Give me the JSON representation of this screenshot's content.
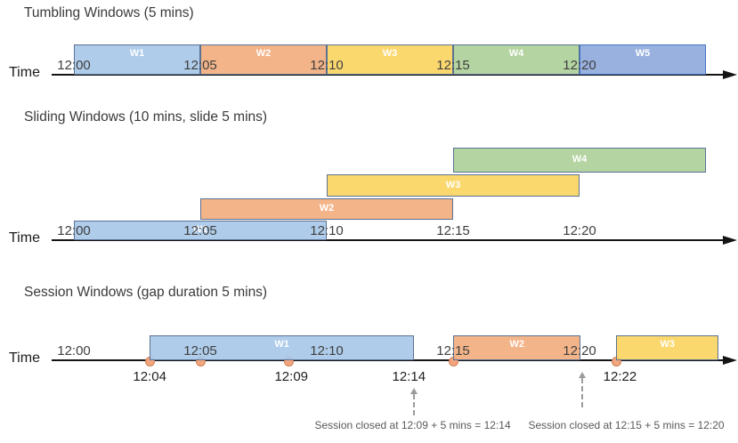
{
  "colors": {
    "window_blue_fill": "#A6C6E8",
    "window_orange_fill": "#F2AC7C",
    "window_yellow_fill": "#FBD45E",
    "window_green_fill": "#ACCF97",
    "window_periwinkle_fill": "#8EA8DC",
    "window_border": "#5B7293",
    "window_periwinkle_border": "#4472C4",
    "event_dot_fill": "#F2A57F",
    "event_dot_border": "#D08050",
    "axis_color": "#141414",
    "callout_gray": "#9B9B9B"
  },
  "diagrams": [
    {
      "id": "tumbling",
      "title": "Tumbling Windows (5 mins)",
      "axis_label": "Time",
      "ticks": [
        {
          "label": "12:00",
          "min": 0
        },
        {
          "label": "12:05",
          "min": 5
        },
        {
          "label": "12:10",
          "min": 10
        },
        {
          "label": "12:15",
          "min": 15
        },
        {
          "label": "12:20",
          "min": 20
        }
      ],
      "windows": [
        {
          "label": "W1",
          "start_min": 0,
          "end_min": 5,
          "row": 0,
          "color": "blue"
        },
        {
          "label": "W2",
          "start_min": 5,
          "end_min": 10,
          "row": 0,
          "color": "orange"
        },
        {
          "label": "W3",
          "start_min": 10,
          "end_min": 15,
          "row": 0,
          "color": "yellow"
        },
        {
          "label": "W4",
          "start_min": 15,
          "end_min": 20,
          "row": 0,
          "color": "green"
        },
        {
          "label": "W5",
          "start_min": 20,
          "end_min": 25,
          "row": 0,
          "color": "periwinkle"
        }
      ]
    },
    {
      "id": "sliding",
      "title": "Sliding Windows (10 mins, slide 5 mins)",
      "axis_label": "Time",
      "ticks": [
        {
          "label": "12:00",
          "min": 0
        },
        {
          "label": "12:05",
          "min": 5
        },
        {
          "label": "12:10",
          "min": 10
        },
        {
          "label": "12:15",
          "min": 15
        },
        {
          "label": "12:20",
          "min": 20
        }
      ],
      "windows": [
        {
          "label": "W1",
          "start_min": 0,
          "end_min": 10,
          "row": 0,
          "color": "blue"
        },
        {
          "label": "W2",
          "start_min": 5,
          "end_min": 15,
          "row": 1,
          "color": "orange"
        },
        {
          "label": "W3",
          "start_min": 10,
          "end_min": 20,
          "row": 2,
          "color": "yellow"
        },
        {
          "label": "W4",
          "start_min": 15,
          "end_min": 25,
          "row": 3,
          "color": "green"
        }
      ]
    },
    {
      "id": "session",
      "title": "Session Windows (gap duration 5 mins)",
      "axis_label": "Time",
      "ticks": [
        {
          "label": "12:00",
          "min": 0
        },
        {
          "label": "12:05",
          "min": 5
        },
        {
          "label": "12:10",
          "min": 10
        },
        {
          "label": "12:15",
          "min": 15
        },
        {
          "label": "12:20",
          "min": 20
        }
      ],
      "windows": [
        {
          "label": "W1",
          "start_min": 3.0,
          "end_min": 13.45,
          "row": 0,
          "color": "blue"
        },
        {
          "label": "W2",
          "start_min": 15.0,
          "end_min": 20.05,
          "row": 0,
          "color": "orange"
        },
        {
          "label": "W3",
          "start_min": 21.45,
          "end_min": 25.5,
          "row": 0,
          "color": "yellow"
        }
      ],
      "events": [
        {
          "min": 3.0
        },
        {
          "min": 5.0
        },
        {
          "min": 8.5
        },
        {
          "min": 15.0
        },
        {
          "min": 21.45
        }
      ],
      "event_labels": [
        {
          "label": "12:04",
          "min": 3.0
        },
        {
          "label": "12:09",
          "min": 8.6
        },
        {
          "label": "12:14",
          "min": 13.25
        },
        {
          "label": "12:22",
          "min": 21.6
        }
      ],
      "callouts": [
        {
          "text": "Session closed at 12:09 + 5 mins = 12:14",
          "arrow_min": 13.45,
          "text_center_min": 13.4
        },
        {
          "text": "Session closed at 12:15 + 5 mins = 12:20",
          "arrow_min": 20.1,
          "text_center_min": 21.85
        }
      ]
    }
  ]
}
